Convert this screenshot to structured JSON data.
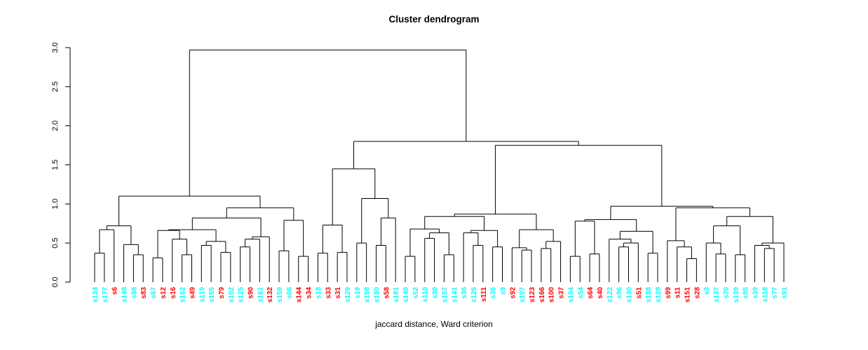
{
  "chart_data": {
    "type": "dendrogram",
    "title": "Cluster dendrogram",
    "xlabel": "jaccard distance, Ward criterion",
    "ylabel": "",
    "ylim": [
      0,
      3
    ],
    "yticks": [
      "0.0",
      "0.5",
      "1.0",
      "1.5",
      "2.0",
      "2.5",
      "3.0"
    ],
    "grid": false,
    "colors": {
      "red": "#ff0000",
      "cyan": "#00ffff",
      "line": "#000000"
    },
    "leaves": [
      {
        "label": "s124",
        "color": "cyan"
      },
      {
        "label": "s177",
        "color": "cyan"
      },
      {
        "label": "s6",
        "color": "red"
      },
      {
        "label": "s148",
        "color": "cyan"
      },
      {
        "label": "s98",
        "color": "cyan"
      },
      {
        "label": "s83",
        "color": "red"
      },
      {
        "label": "s67",
        "color": "cyan"
      },
      {
        "label": "s12",
        "color": "red"
      },
      {
        "label": "s16",
        "color": "red"
      },
      {
        "label": "s162",
        "color": "cyan"
      },
      {
        "label": "s49",
        "color": "red"
      },
      {
        "label": "s119",
        "color": "cyan"
      },
      {
        "label": "s155",
        "color": "cyan"
      },
      {
        "label": "s79",
        "color": "red"
      },
      {
        "label": "s102",
        "color": "cyan"
      },
      {
        "label": "s125",
        "color": "cyan"
      },
      {
        "label": "s90",
        "color": "red"
      },
      {
        "label": "s161",
        "color": "cyan"
      },
      {
        "label": "s132",
        "color": "red"
      },
      {
        "label": "s159",
        "color": "cyan"
      },
      {
        "label": "s66",
        "color": "cyan"
      },
      {
        "label": "s144",
        "color": "red"
      },
      {
        "label": "s34",
        "color": "red"
      },
      {
        "label": "s18",
        "color": "cyan"
      },
      {
        "label": "s33",
        "color": "red"
      },
      {
        "label": "s31",
        "color": "red"
      },
      {
        "label": "s129",
        "color": "cyan"
      },
      {
        "label": "s19",
        "color": "cyan"
      },
      {
        "label": "s158",
        "color": "cyan"
      },
      {
        "label": "s180",
        "color": "cyan"
      },
      {
        "label": "s58",
        "color": "red"
      },
      {
        "label": "s181",
        "color": "cyan"
      },
      {
        "label": "s140",
        "color": "cyan"
      },
      {
        "label": "s52",
        "color": "cyan"
      },
      {
        "label": "s110",
        "color": "cyan"
      },
      {
        "label": "s30",
        "color": "cyan"
      },
      {
        "label": "s157",
        "color": "cyan"
      },
      {
        "label": "s141",
        "color": "cyan"
      },
      {
        "label": "s36",
        "color": "cyan"
      },
      {
        "label": "s126",
        "color": "cyan"
      },
      {
        "label": "s111",
        "color": "red"
      },
      {
        "label": "s35",
        "color": "cyan"
      },
      {
        "label": "s9",
        "color": "cyan"
      },
      {
        "label": "s92",
        "color": "red"
      },
      {
        "label": "s107",
        "color": "cyan"
      },
      {
        "label": "s123",
        "color": "red"
      },
      {
        "label": "s166",
        "color": "red"
      },
      {
        "label": "s100",
        "color": "red"
      },
      {
        "label": "s37",
        "color": "red"
      },
      {
        "label": "s104",
        "color": "cyan"
      },
      {
        "label": "s54",
        "color": "cyan"
      },
      {
        "label": "s64",
        "color": "red"
      },
      {
        "label": "s40",
        "color": "red"
      },
      {
        "label": "s122",
        "color": "cyan"
      },
      {
        "label": "s96",
        "color": "cyan"
      },
      {
        "label": "s130",
        "color": "cyan"
      },
      {
        "label": "s51",
        "color": "red"
      },
      {
        "label": "s188",
        "color": "cyan"
      },
      {
        "label": "s128",
        "color": "cyan"
      },
      {
        "label": "s99",
        "color": "red"
      },
      {
        "label": "s11",
        "color": "red"
      },
      {
        "label": "s151",
        "color": "red"
      },
      {
        "label": "s28",
        "color": "red"
      },
      {
        "label": "s3",
        "color": "cyan"
      },
      {
        "label": "s137",
        "color": "cyan"
      },
      {
        "label": "s70",
        "color": "cyan"
      },
      {
        "label": "s139",
        "color": "cyan"
      },
      {
        "label": "s85",
        "color": "cyan"
      },
      {
        "label": "s39",
        "color": "cyan"
      },
      {
        "label": "s118",
        "color": "cyan"
      },
      {
        "label": "s77",
        "color": "cyan"
      },
      {
        "label": "s91",
        "color": "cyan"
      }
    ],
    "tree": {
      "h": 2.97,
      "c": [
        {
          "h": 1.1,
          "c": [
            {
              "h": 0.72,
              "c": [
                {
                  "h": 0.67,
                  "c": [
                    {
                      "h": 0.37,
                      "c": [
                        0,
                        1
                      ]
                    },
                    2
                  ]
                },
                {
                  "h": 0.48,
                  "c": [
                    3,
                    {
                      "h": 0.35,
                      "c": [
                        4,
                        5
                      ]
                    }
                  ]
                }
              ]
            },
            {
              "h": 0.95,
              "c": [
                {
                  "h": 0.82,
                  "c": [
                    {
                      "h": 0.67,
                      "c": [
                        {
                          "h": 0.66,
                          "c": [
                            {
                              "h": 0.31,
                              "c": [
                                6,
                                7
                              ]
                            },
                            {
                              "h": 0.55,
                              "c": [
                                8,
                                {
                                  "h": 0.35,
                                  "c": [
                                    9,
                                    10
                                  ]
                                }
                              ]
                            }
                          ]
                        },
                        {
                          "h": 0.52,
                          "c": [
                            {
                              "h": 0.47,
                              "c": [
                                11,
                                12
                              ]
                            },
                            {
                              "h": 0.38,
                              "c": [
                                13,
                                14
                              ]
                            }
                          ]
                        }
                      ]
                    },
                    {
                      "h": 0.58,
                      "c": [
                        {
                          "h": 0.55,
                          "c": [
                            {
                              "h": 0.45,
                              "c": [
                                15,
                                16
                              ]
                            },
                            17
                          ]
                        },
                        18
                      ]
                    }
                  ]
                },
                {
                  "h": 0.79,
                  "c": [
                    {
                      "h": 0.4,
                      "c": [
                        19,
                        20
                      ]
                    },
                    {
                      "h": 0.33,
                      "c": [
                        21,
                        22
                      ]
                    }
                  ]
                }
              ]
            }
          ]
        },
        {
          "h": 1.8,
          "c": [
            {
              "h": 1.45,
              "c": [
                {
                  "h": 0.73,
                  "c": [
                    {
                      "h": 0.37,
                      "c": [
                        23,
                        24
                      ]
                    },
                    {
                      "h": 0.38,
                      "c": [
                        25,
                        26
                      ]
                    }
                  ]
                },
                {
                  "h": 1.07,
                  "c": [
                    {
                      "h": 0.5,
                      "c": [
                        27,
                        28
                      ]
                    },
                    {
                      "h": 0.82,
                      "c": [
                        {
                          "h": 0.47,
                          "c": [
                            29,
                            30
                          ]
                        },
                        31
                      ]
                    }
                  ]
                }
              ]
            },
            {
              "h": 1.75,
              "c": [
                {
                  "h": 0.87,
                  "c": [
                    {
                      "h": 0.84,
                      "c": [
                        {
                          "h": 0.68,
                          "c": [
                            {
                              "h": 0.33,
                              "c": [
                                32,
                                33
                              ]
                            },
                            {
                              "h": 0.63,
                              "c": [
                                {
                                  "h": 0.56,
                                  "c": [
                                    34,
                                    35
                                  ]
                                },
                                {
                                  "h": 0.35,
                                  "c": [
                                    36,
                                    37
                                  ]
                                }
                              ]
                            }
                          ]
                        },
                        {
                          "h": 0.66,
                          "c": [
                            {
                              "h": 0.63,
                              "c": [
                                38,
                                {
                                  "h": 0.47,
                                  "c": [
                                    39,
                                    40
                                  ]
                                }
                              ]
                            },
                            {
                              "h": 0.45,
                              "c": [
                                41,
                                42
                              ]
                            }
                          ]
                        }
                      ]
                    },
                    {
                      "h": 0.67,
                      "c": [
                        {
                          "h": 0.44,
                          "c": [
                            43,
                            {
                              "h": 0.41,
                              "c": [
                                44,
                                45
                              ]
                            }
                          ]
                        },
                        {
                          "h": 0.52,
                          "c": [
                            {
                              "h": 0.43,
                              "c": [
                                46,
                                47
                              ]
                            },
                            48
                          ]
                        }
                      ]
                    }
                  ]
                },
                {
                  "h": 0.97,
                  "c": [
                    {
                      "h": 0.8,
                      "c": [
                        {
                          "h": 0.78,
                          "c": [
                            {
                              "h": 0.33,
                              "c": [
                                49,
                                50
                              ]
                            },
                            {
                              "h": 0.36,
                              "c": [
                                51,
                                52
                              ]
                            }
                          ]
                        },
                        {
                          "h": 0.65,
                          "c": [
                            {
                              "h": 0.55,
                              "c": [
                                53,
                                {
                                  "h": 0.5,
                                  "c": [
                                    {
                                      "h": 0.45,
                                      "c": [
                                        54,
                                        55
                                      ]
                                    },
                                    56
                                  ]
                                }
                              ]
                            },
                            {
                              "h": 0.37,
                              "c": [
                                57,
                                58
                              ]
                            }
                          ]
                        }
                      ]
                    },
                    {
                      "h": 0.95,
                      "c": [
                        {
                          "h": 0.53,
                          "c": [
                            59,
                            {
                              "h": 0.45,
                              "c": [
                                60,
                                {
                                  "h": 0.3,
                                  "c": [
                                    61,
                                    62
                                  ]
                                }
                              ]
                            }
                          ]
                        },
                        {
                          "h": 0.84,
                          "c": [
                            {
                              "h": 0.72,
                              "c": [
                                {
                                  "h": 0.5,
                                  "c": [
                                    63,
                                    {
                                      "h": 0.36,
                                      "c": [
                                        64,
                                        65
                                      ]
                                    }
                                  ]
                                },
                                {
                                  "h": 0.35,
                                  "c": [
                                    66,
                                    67
                                  ]
                                }
                              ]
                            },
                            {
                              "h": 0.5,
                              "c": [
                                {
                                  "h": 0.47,
                                  "c": [
                                    68,
                                    {
                                      "h": 0.43,
                                      "c": [
                                        69,
                                        70
                                      ]
                                    }
                                  ]
                                },
                                71
                              ]
                            }
                          ]
                        }
                      ]
                    }
                  ]
                }
              ]
            }
          ]
        }
      ]
    }
  }
}
